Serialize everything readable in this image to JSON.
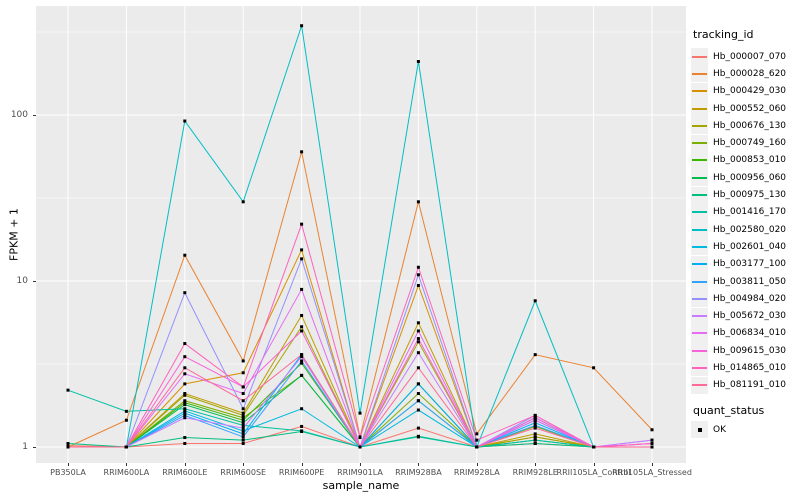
{
  "figure": {
    "y_axis_title": "FPKM + 1",
    "x_axis_title": "sample_name"
  },
  "legend": {
    "tracking_title": "tracking_id",
    "quant_title": "quant_status",
    "quant_items": [
      {
        "label": "OK",
        "shape": "black-square"
      }
    ]
  },
  "chart_data": {
    "type": "line",
    "x_type": "categorical",
    "title": "",
    "xlabel": "sample_name",
    "ylabel": "FPKM + 1",
    "y_scale": "log10",
    "ylim": [
      0.8,
      460
    ],
    "y_ticks": [
      1,
      10,
      100
    ],
    "y_minor": [
      3.162,
      31.62,
      316.2
    ],
    "grid": "on",
    "panel_bg": "#EBEBEB",
    "grid_color": "#FFFFFF",
    "point_shape": "black-square",
    "legend_position": "right",
    "categories": [
      "PB350LA",
      "RRIM600LA",
      "RRIM600LE",
      "RRIM600SE",
      "RRIM600PE",
      "RRIM901LA",
      "RRIM928BA",
      "RRIM928LA",
      "RRIM928LE",
      "RRII105LA_Control",
      "RRII105LA_Stressed"
    ],
    "series": [
      {
        "name": "Hb_000007_070",
        "color": "#F8766D",
        "values": [
          1.02,
          1.0,
          1.05,
          1.05,
          1.33,
          1.0,
          1.3,
          1.0,
          1.05,
          1.0,
          1.0
        ]
      },
      {
        "name": "Hb_000028_620",
        "color": "#EA8331",
        "values": [
          1.0,
          1.45,
          14.3,
          3.3,
          60,
          1.15,
          30,
          1.2,
          3.6,
          3.0,
          1.27
        ]
      },
      {
        "name": "Hb_000429_030",
        "color": "#D89000",
        "values": [
          1.0,
          1.0,
          2.4,
          2.8,
          15.4,
          1.0,
          9.4,
          1.0,
          1.15,
          1.0,
          1.0
        ]
      },
      {
        "name": "Hb_000552_060",
        "color": "#C09B00",
        "values": [
          1.0,
          1.0,
          2.1,
          1.6,
          6.2,
          1.0,
          5.6,
          1.0,
          1.2,
          1.0,
          1.0
        ]
      },
      {
        "name": "Hb_000676_130",
        "color": "#A3A500",
        "values": [
          1.0,
          1.0,
          2.05,
          1.55,
          5.3,
          1.0,
          4.3,
          1.0,
          1.15,
          1.0,
          1.0
        ]
      },
      {
        "name": "Hb_000749_160",
        "color": "#7CAE00",
        "values": [
          1.0,
          1.0,
          1.9,
          1.5,
          2.7,
          1.0,
          2.1,
          1.0,
          1.33,
          1.0,
          1.0
        ]
      },
      {
        "name": "Hb_000853_010",
        "color": "#39B600",
        "values": [
          1.0,
          1.0,
          1.85,
          1.45,
          3.2,
          1.0,
          2.4,
          1.0,
          1.5,
          1.0,
          1.0
        ]
      },
      {
        "name": "Hb_000956_060",
        "color": "#00BB4E",
        "values": [
          1.0,
          1.0,
          1.8,
          1.4,
          2.7,
          1.0,
          1.9,
          1.0,
          1.1,
          1.0,
          1.0
        ]
      },
      {
        "name": "Hb_000975_130",
        "color": "#00BF7D",
        "values": [
          1.05,
          1.0,
          1.14,
          1.1,
          1.24,
          1.0,
          1.16,
          1.0,
          1.05,
          1.0,
          1.0
        ]
      },
      {
        "name": "Hb_001416_170",
        "color": "#00C1A3",
        "values": [
          2.2,
          1.64,
          1.7,
          1.35,
          1.25,
          1.0,
          1.15,
          1.0,
          1.1,
          1.0,
          1.0
        ]
      },
      {
        "name": "Hb_002580_020",
        "color": "#00BFC4",
        "values": [
          1.0,
          1.0,
          92,
          30,
          345,
          1.6,
          210,
          1.0,
          7.6,
          1.0,
          1.0
        ]
      },
      {
        "name": "Hb_002601_040",
        "color": "#00BAE0",
        "values": [
          1.0,
          1.0,
          1.65,
          1.25,
          1.7,
          1.0,
          1.67,
          1.0,
          1.45,
          1.0,
          1.0
        ]
      },
      {
        "name": "Hb_003177_100",
        "color": "#00B0F6",
        "values": [
          1.0,
          1.0,
          1.6,
          1.2,
          3.6,
          1.0,
          2.4,
          1.0,
          1.4,
          1.0,
          1.0
        ]
      },
      {
        "name": "Hb_003811_050",
        "color": "#35A2FF",
        "values": [
          1.0,
          1.0,
          1.55,
          1.15,
          3.3,
          1.0,
          1.9,
          1.0,
          1.35,
          1.0,
          1.0
        ]
      },
      {
        "name": "Hb_004984_020",
        "color": "#9590FF",
        "values": [
          1.0,
          1.0,
          8.5,
          1.7,
          13.6,
          1.0,
          10.9,
          1.0,
          1.55,
          1.0,
          1.1
        ]
      },
      {
        "name": "Hb_005672_030",
        "color": "#C77CFF",
        "values": [
          1.0,
          1.0,
          1.5,
          1.3,
          3.5,
          1.0,
          3.7,
          1.0,
          1.5,
          1.0,
          1.1
        ]
      },
      {
        "name": "Hb_006834_010",
        "color": "#E76BF3",
        "values": [
          1.0,
          1.0,
          2.76,
          2.1,
          8.9,
          1.0,
          5.0,
          1.0,
          1.45,
          1.0,
          1.05
        ]
      },
      {
        "name": "Hb_009615_030",
        "color": "#FA62DB",
        "values": [
          1.0,
          1.0,
          3.5,
          2.3,
          5.0,
          1.0,
          4.5,
          1.0,
          1.5,
          1.0,
          1.05
        ]
      },
      {
        "name": "Hb_014865_010",
        "color": "#FF62BC",
        "values": [
          1.0,
          1.0,
          4.2,
          2.3,
          22,
          1.14,
          12.1,
          1.1,
          1.55,
          1.0,
          1.05
        ]
      },
      {
        "name": "Hb_081191_010",
        "color": "#FF6A98",
        "values": [
          1.0,
          1.0,
          3.0,
          1.9,
          3.6,
          1.0,
          3.0,
          1.0,
          1.3,
          1.0,
          1.0
        ]
      }
    ],
    "quant_status": {
      "title": "quant_status",
      "items": [
        "OK"
      ]
    }
  }
}
